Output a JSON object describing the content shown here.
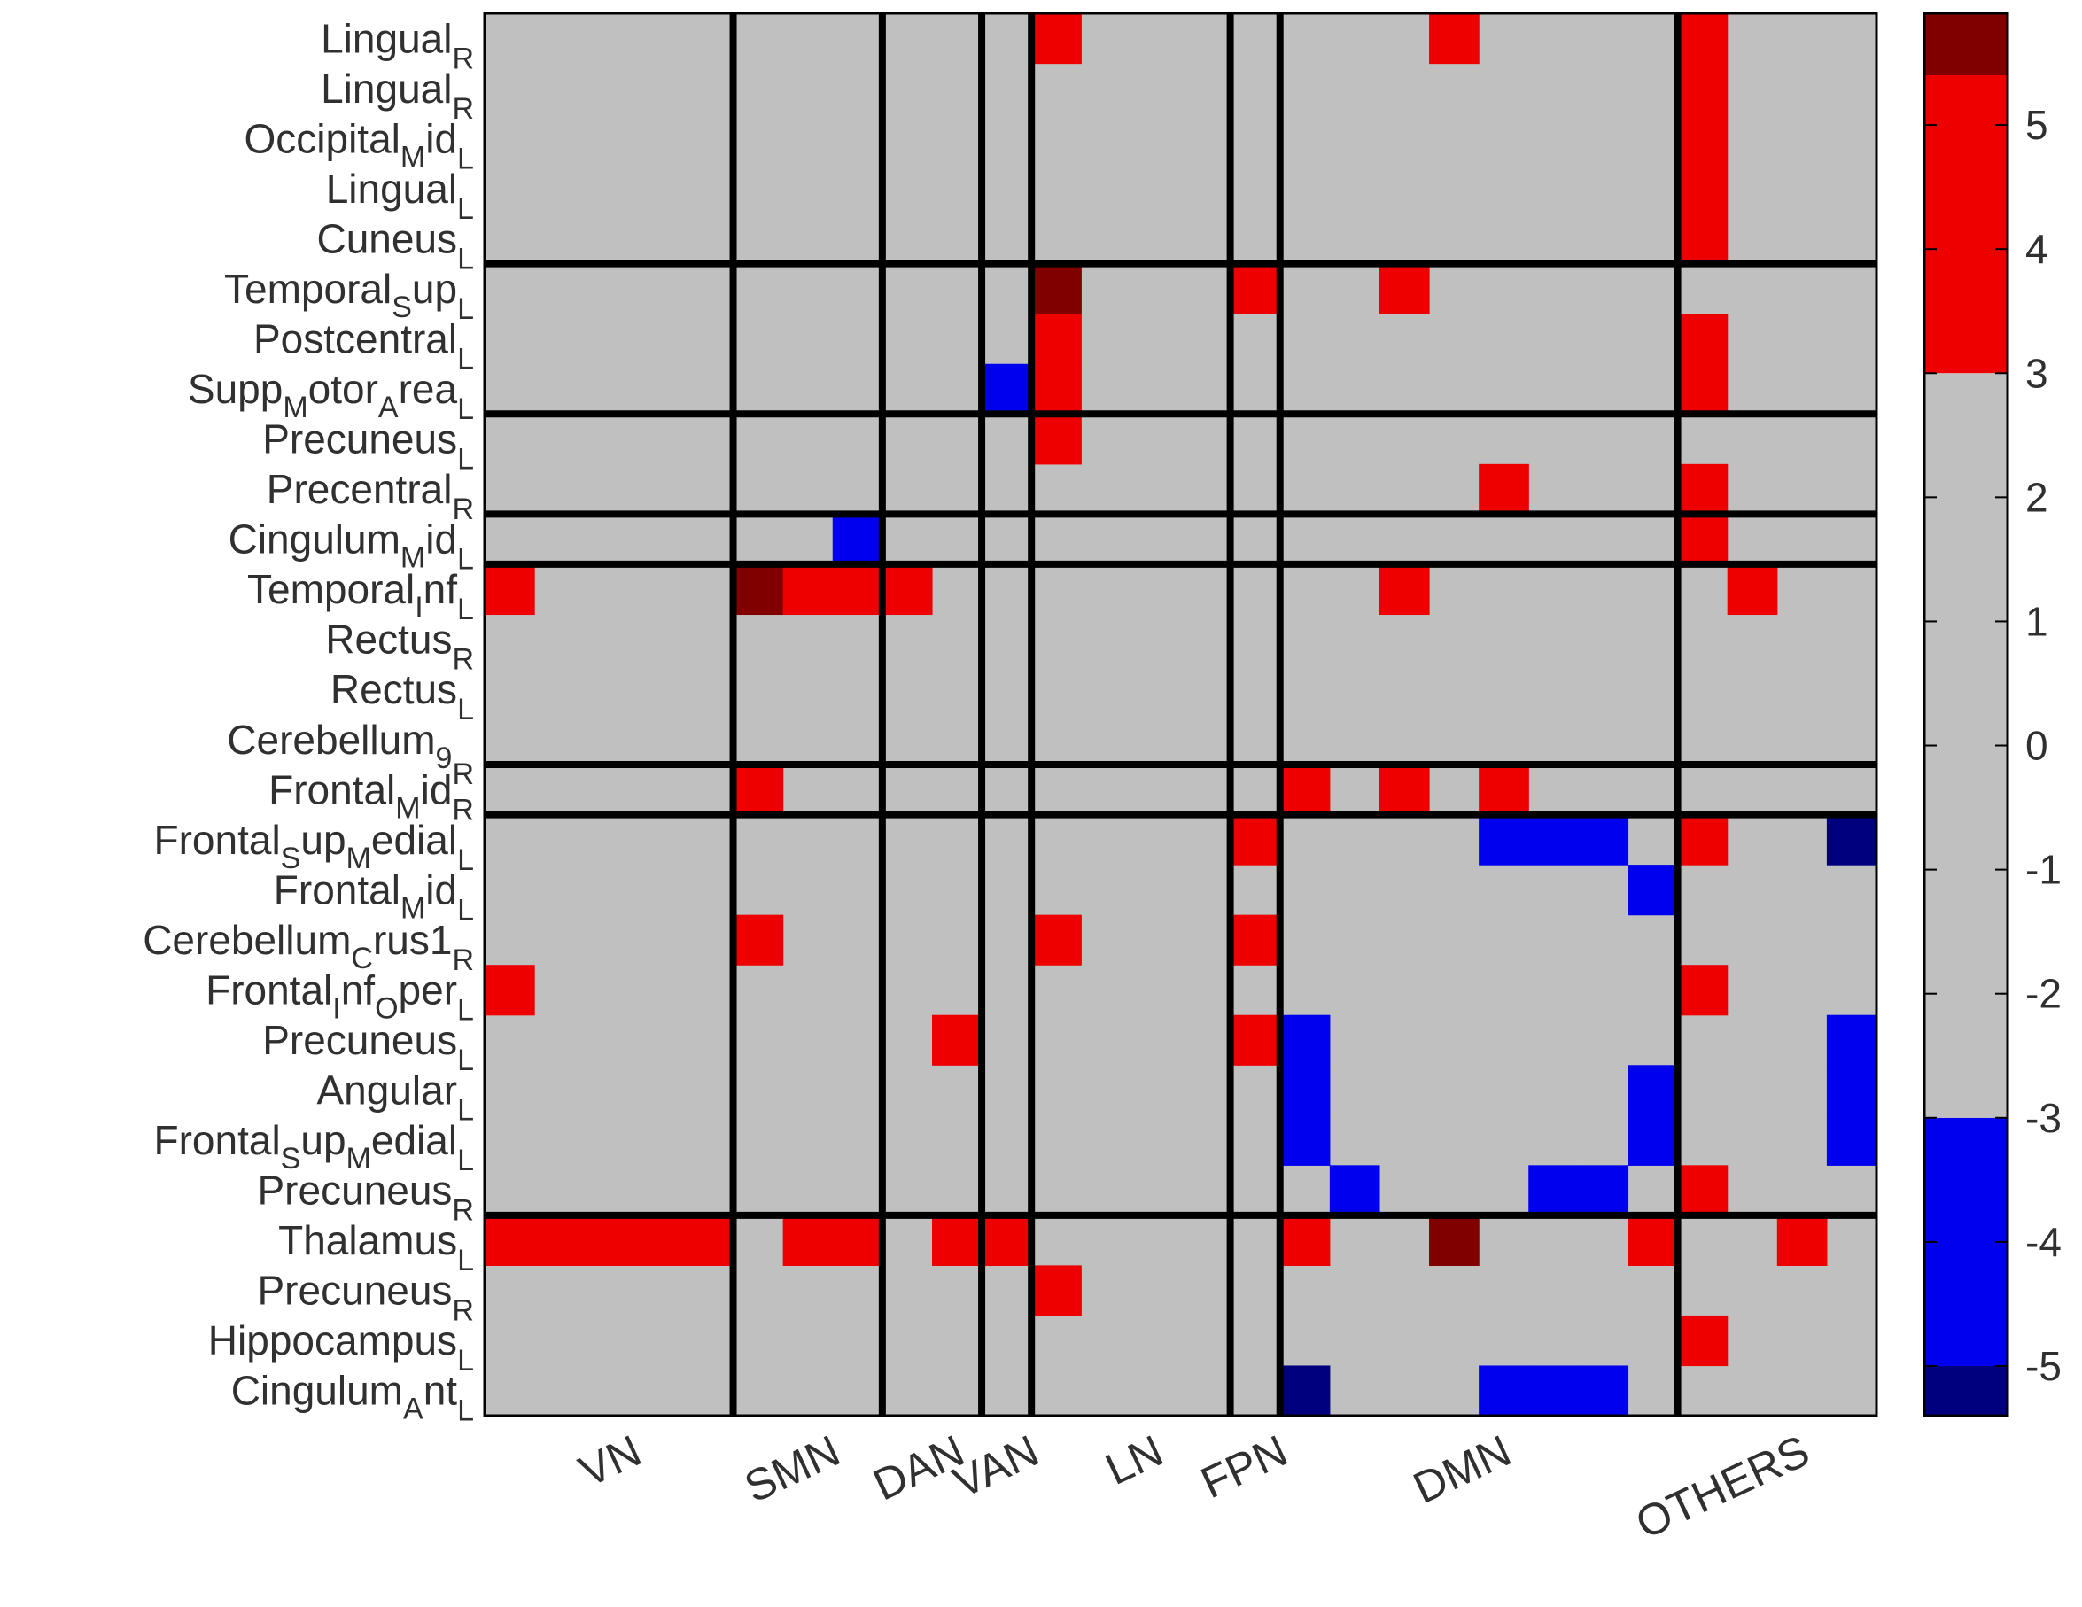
{
  "chart_data": {
    "type": "heatmap",
    "colormap": {
      "ranges": [
        {
          "from": -5.4,
          "to": -5.0,
          "color": "#00007f"
        },
        {
          "from": -5.0,
          "to": -3.0,
          "color": "#0000ee"
        },
        {
          "from": -3.0,
          "to": 3.0,
          "color": "#c0c0c0"
        },
        {
          "from": 3.0,
          "to": 5.4,
          "color": "#ee0000"
        },
        {
          "from": 5.4,
          "to": 5.9,
          "color": "#800000"
        }
      ],
      "colors": {
        "dark_red": "#800000",
        "red": "#ee0000",
        "mid_red": "#c80000",
        "gray": "#c0c0c0",
        "blue": "#0000ee",
        "dark_blue": "#00008a"
      },
      "range": [
        -5.4,
        5.9
      ],
      "ticks": [
        5,
        4,
        3,
        2,
        1,
        0,
        -1,
        -2,
        -3,
        -4,
        -5
      ]
    },
    "rows": [
      {
        "name": "Lingual",
        "sub": "R"
      },
      {
        "name": "Lingual",
        "sub": "R"
      },
      {
        "name": "Occipital_Mid",
        "sub": "L"
      },
      {
        "name": "Lingual",
        "sub": "L"
      },
      {
        "name": "Cuneus",
        "sub": "L"
      },
      {
        "name": "Temporal_Sup",
        "sub": "L"
      },
      {
        "name": "Postcentral",
        "sub": "L"
      },
      {
        "name": "Supp_Motor_Area",
        "sub": "L"
      },
      {
        "name": "Precuneus",
        "sub": "L"
      },
      {
        "name": "Precentral",
        "sub": "R"
      },
      {
        "name": "Cingulum_Mid",
        "sub": "L"
      },
      {
        "name": "Temporal_Inf",
        "sub": "L"
      },
      {
        "name": "Rectus",
        "sub": "R"
      },
      {
        "name": "Rectus",
        "sub": "L"
      },
      {
        "name": "Cerebellum_9",
        "sub": "R"
      },
      {
        "name": "Frontal_Mid",
        "sub": "R"
      },
      {
        "name": "Frontal_Sup_Medial",
        "sub": "L"
      },
      {
        "name": "Frontal_Mid",
        "sub": "L"
      },
      {
        "name": "Cerebellum_Crus1",
        "sub": "R"
      },
      {
        "name": "Frontal_Inf_Oper",
        "sub": "L"
      },
      {
        "name": "Precuneus",
        "sub": "L"
      },
      {
        "name": "Angular",
        "sub": "L"
      },
      {
        "name": "Frontal_Sup_Medial",
        "sub": "L"
      },
      {
        "name": "Precuneus",
        "sub": "R"
      },
      {
        "name": "Thalamus",
        "sub": "L"
      },
      {
        "name": "Precuneus",
        "sub": "R"
      },
      {
        "name": "Hippocampus",
        "sub": "L"
      },
      {
        "name": "Cingulum_Ant",
        "sub": "L"
      }
    ],
    "row_group_sizes": [
      5,
      3,
      2,
      1,
      4,
      1,
      8,
      4
    ],
    "networks": [
      "VN",
      "SMN",
      "DAN",
      "VAN",
      "LN",
      "FPN",
      "DMN",
      "OTHERS"
    ],
    "network_col_counts": [
      5,
      3,
      2,
      1,
      4,
      1,
      8,
      4
    ],
    "col_count": 28,
    "cells": [
      {
        "r": 0,
        "c": 11,
        "v": 4
      },
      {
        "r": 0,
        "c": 19,
        "v": 4
      },
      {
        "r": 0,
        "c": 24,
        "v": 4
      },
      {
        "r": 1,
        "c": 24,
        "v": 4
      },
      {
        "r": 2,
        "c": 24,
        "v": 4
      },
      {
        "r": 3,
        "c": 24,
        "v": 4
      },
      {
        "r": 4,
        "c": 24,
        "v": 4
      },
      {
        "r": 5,
        "c": 11,
        "v": 5.7
      },
      {
        "r": 5,
        "c": 15,
        "v": 4
      },
      {
        "r": 5,
        "c": 18,
        "v": 4
      },
      {
        "r": 6,
        "c": 11,
        "v": 4
      },
      {
        "r": 6,
        "c": 24,
        "v": 4
      },
      {
        "r": 7,
        "c": 10,
        "v": -4
      },
      {
        "r": 7,
        "c": 11,
        "v": 4
      },
      {
        "r": 7,
        "c": 24,
        "v": 4
      },
      {
        "r": 8,
        "c": 11,
        "v": 4
      },
      {
        "r": 9,
        "c": 20,
        "v": 4
      },
      {
        "r": 9,
        "c": 24,
        "v": 4
      },
      {
        "r": 10,
        "c": 7,
        "v": -4
      },
      {
        "r": 10,
        "c": 24,
        "v": 4
      },
      {
        "r": 11,
        "c": 0,
        "v": 4
      },
      {
        "r": 11,
        "c": 5,
        "v": 5.7
      },
      {
        "r": 11,
        "c": 6,
        "v": 4
      },
      {
        "r": 11,
        "c": 7,
        "v": 4
      },
      {
        "r": 11,
        "c": 8,
        "v": 4
      },
      {
        "r": 11,
        "c": 18,
        "v": 4
      },
      {
        "r": 11,
        "c": 25,
        "v": 4
      },
      {
        "r": 15,
        "c": 5,
        "v": 4
      },
      {
        "r": 15,
        "c": 16,
        "v": 4
      },
      {
        "r": 15,
        "c": 18,
        "v": 4
      },
      {
        "r": 15,
        "c": 20,
        "v": 4
      },
      {
        "r": 16,
        "c": 15,
        "v": 4
      },
      {
        "r": 16,
        "c": 20,
        "v": -4
      },
      {
        "r": 16,
        "c": 21,
        "v": -4
      },
      {
        "r": 16,
        "c": 22,
        "v": -4
      },
      {
        "r": 16,
        "c": 24,
        "v": 4
      },
      {
        "r": 16,
        "c": 27,
        "v": -5.2
      },
      {
        "r": 17,
        "c": 23,
        "v": -4
      },
      {
        "r": 18,
        "c": 5,
        "v": 4
      },
      {
        "r": 18,
        "c": 11,
        "v": 4
      },
      {
        "r": 18,
        "c": 15,
        "v": 4
      },
      {
        "r": 19,
        "c": 0,
        "v": 4
      },
      {
        "r": 19,
        "c": 24,
        "v": 5.4
      },
      {
        "r": 20,
        "c": 9,
        "v": 4
      },
      {
        "r": 20,
        "c": 15,
        "v": 4
      },
      {
        "r": 20,
        "c": 16,
        "v": -4
      },
      {
        "r": 20,
        "c": 27,
        "v": -4
      },
      {
        "r": 21,
        "c": 16,
        "v": -4
      },
      {
        "r": 21,
        "c": 23,
        "v": -4
      },
      {
        "r": 21,
        "c": 27,
        "v": -4
      },
      {
        "r": 22,
        "c": 16,
        "v": -4
      },
      {
        "r": 22,
        "c": 23,
        "v": -4
      },
      {
        "r": 22,
        "c": 27,
        "v": -4.5
      },
      {
        "r": 23,
        "c": 17,
        "v": -4
      },
      {
        "r": 23,
        "c": 21,
        "v": -4
      },
      {
        "r": 23,
        "c": 22,
        "v": -4
      },
      {
        "r": 23,
        "c": 24,
        "v": 4
      },
      {
        "r": 24,
        "c": 0,
        "v": 4
      },
      {
        "r": 24,
        "c": 1,
        "v": 4
      },
      {
        "r": 24,
        "c": 2,
        "v": 4
      },
      {
        "r": 24,
        "c": 3,
        "v": 4
      },
      {
        "r": 24,
        "c": 4,
        "v": 4
      },
      {
        "r": 24,
        "c": 6,
        "v": 4
      },
      {
        "r": 24,
        "c": 7,
        "v": 4
      },
      {
        "r": 24,
        "c": 9,
        "v": 4
      },
      {
        "r": 24,
        "c": 10,
        "v": 4
      },
      {
        "r": 24,
        "c": 16,
        "v": 4
      },
      {
        "r": 24,
        "c": 19,
        "v": 5.5
      },
      {
        "r": 24,
        "c": 23,
        "v": 4
      },
      {
        "r": 24,
        "c": 26,
        "v": 4
      },
      {
        "r": 25,
        "c": 11,
        "v": 4
      },
      {
        "r": 26,
        "c": 24,
        "v": 4
      },
      {
        "r": 27,
        "c": 16,
        "v": -5.3
      },
      {
        "r": 27,
        "c": 20,
        "v": -4
      },
      {
        "r": 27,
        "c": 21,
        "v": -4
      },
      {
        "r": 27,
        "c": 22,
        "v": -4.5
      }
    ]
  }
}
